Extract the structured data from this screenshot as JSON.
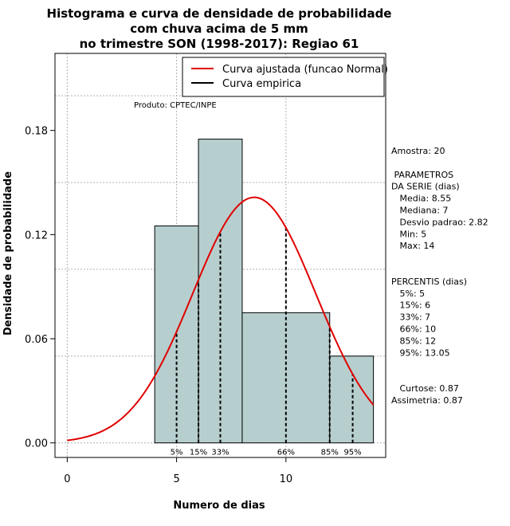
{
  "chart_data": {
    "type": "bar",
    "title_lines": [
      "Histograma e curva de densidade de probabilidade",
      "com chuva acima de 5 mm",
      "no trimestre SON (1998-2017): Regiao 61"
    ],
    "xlabel": "Numero de dias",
    "ylabel": "Densidade de probabilidade",
    "xlim": [
      -0.56,
      14.56
    ],
    "ylim": [
      -0.0084,
      0.2244
    ],
    "x_ticks": [
      0,
      5,
      10
    ],
    "y_ticks": [
      0.0,
      0.06,
      0.12,
      0.18
    ],
    "y_tick_labels": [
      "0.00",
      "0.06",
      "0.12",
      "0.18"
    ],
    "grid_x": [
      0,
      5,
      10
    ],
    "grid_y": [
      0,
      0.05,
      0.1,
      0.15,
      0.2
    ],
    "bars": [
      {
        "x0": 4,
        "x1": 6,
        "density": 0.125
      },
      {
        "x0": 6,
        "x1": 8,
        "density": 0.175
      },
      {
        "x0": 8,
        "x1": 12,
        "density": 0.075
      },
      {
        "x0": 12,
        "x1": 14,
        "density": 0.05
      }
    ],
    "bar_color": "#b7cece",
    "normal_curve": {
      "mean": 8.55,
      "sd": 2.82,
      "x_range": [
        0,
        14
      ],
      "color": "#e00000",
      "name": "Curva ajustada (funcao Normal)"
    },
    "empirical_curve_name": "Curva empirica",
    "legend_position": "top-right",
    "percentiles": [
      {
        "label": "5%",
        "value": 5
      },
      {
        "label": "15%",
        "value": 6
      },
      {
        "label": "33%",
        "value": 7
      },
      {
        "label": "66%",
        "value": 10
      },
      {
        "label": "85%",
        "value": 12
      },
      {
        "label": "95%",
        "value": 13.05
      }
    ],
    "product_label": "Produto: CPTEC/INPE",
    "stats_lines": [
      "Amostra: 20",
      "",
      " PARAMETROS",
      "DA SERIE (dias)",
      "   Media: 8.55",
      "   Mediana: 7",
      "   Desvio padrao: 2.82",
      "   Min: 5",
      "   Max: 14",
      "",
      "",
      "PERCENTIS (dias)",
      "   5%: 5",
      "   15%: 6",
      "   33%: 7",
      "   66%: 10",
      "   85%: 12",
      "   95%: 13.05",
      "",
      "",
      "   Curtose: 0.87",
      "Assimetria: 0.87"
    ]
  }
}
